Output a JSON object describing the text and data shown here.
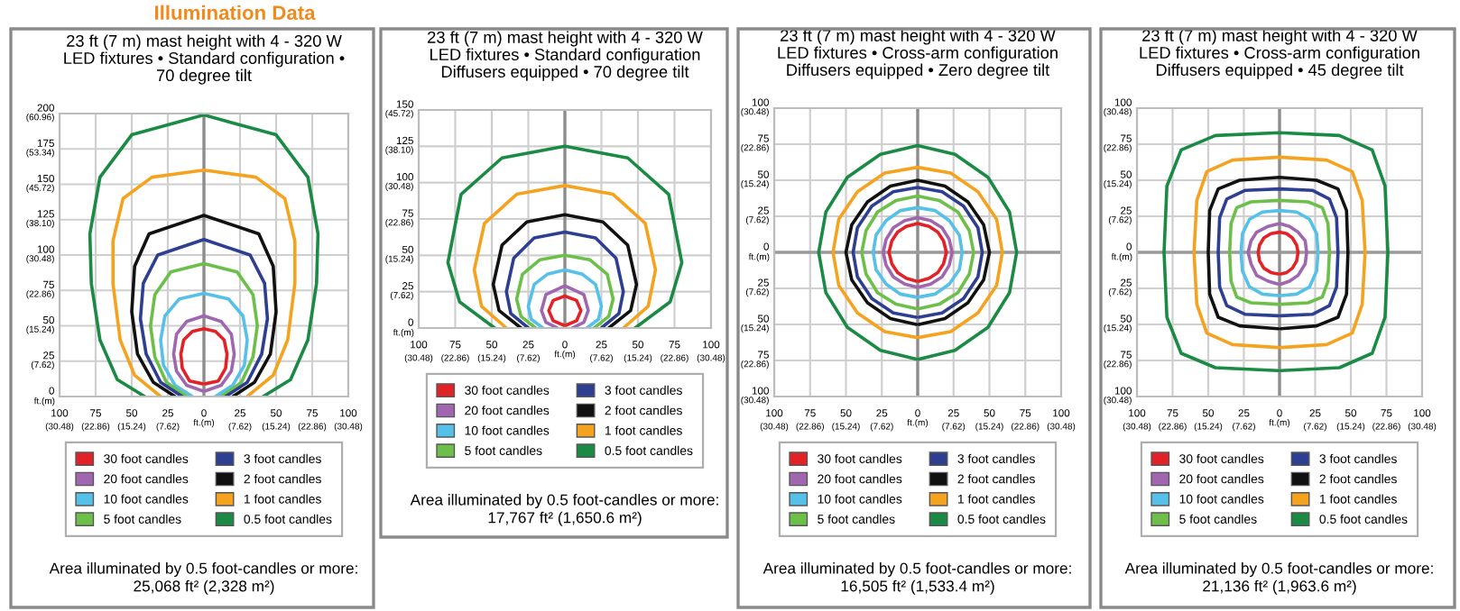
{
  "chart_data": [
    {
      "type": "line",
      "title": "23 ft (7 m) mast height with 4 - 320 W\nLED fixtures • Standard configuration •\n70 degree tilt",
      "annotations": [
        "Illumination Data",
        "Area illuminated by 0.5 foot-candles or more:\n25,068 ft² (2,328 m²)"
      ],
      "legend": "bottom",
      "grid": true,
      "marker": "none",
      "line_style": "solid",
      "xlabel": "ft.(m)",
      "ylabel": "ft.(m)",
      "xlim": [
        -100,
        100
      ],
      "ylim": [
        0,
        200
      ],
      "xticks": [
        {
          "value": -100,
          "label": "100"
        },
        {
          "value": -75,
          "label": "75"
        },
        {
          "value": -50,
          "label": "50"
        },
        {
          "value": -25,
          "label": "25"
        },
        0,
        25,
        50,
        75,
        100
      ],
      "x2lim": [
        -30.48,
        30.48
      ],
      "x2ticks": [
        {
          "value": -30.48,
          "label": "(30.48)"
        },
        {
          "value": -22.86,
          "label": "(22.86)"
        },
        {
          "value": -15.24,
          "label": "(15.24)"
        },
        {
          "value": -7.62,
          "label": "(7.62)"
        },
        {
          "value": 7.62,
          "label": "(7.62)"
        },
        {
          "value": 15.24,
          "label": "(15.24)"
        },
        {
          "value": 22.86,
          "label": "(22.86)"
        },
        {
          "value": 30.48,
          "label": "(30.48)"
        }
      ],
      "yticks": [
        0,
        25,
        50,
        75,
        100,
        125,
        150,
        175,
        200
      ],
      "y2lim": [
        0,
        60.96
      ],
      "y2ticks": [
        {
          "value": 7.62,
          "label": "(7.62)"
        },
        {
          "value": 15.24,
          "label": "(15.24)"
        },
        {
          "value": 22.86,
          "label": "(22.86)"
        },
        {
          "value": 30.48,
          "label": "(30.48)"
        },
        {
          "value": 38.1,
          "label": "(38.10)"
        },
        {
          "value": 45.72,
          "label": "(45.72)"
        },
        {
          "value": 53.34,
          "label": "(53.34)"
        },
        {
          "value": 60.96,
          "label": "(60.96)"
        }
      ],
      "ref_lines": [
        {
          "axis": "x",
          "value": 0,
          "color": "#8c8c8c"
        }
      ],
      "series": [
        {
          "name": "30 foot candles",
          "color": "#e32228",
          "x": [
            1,
            10,
            15,
            16,
            14,
            8,
            0,
            -8,
            -14,
            -16,
            -15,
            -10,
            -1
          ],
          "values": [
            9,
            11,
            20,
            30,
            40,
            46,
            48,
            46,
            40,
            30,
            20,
            11,
            9
          ]
        },
        {
          "name": "20 foot candles",
          "color": "#a066b0",
          "x": [
            1,
            12,
            19,
            21,
            19,
            12,
            0,
            -12,
            -19,
            -21,
            -19,
            -12,
            -1
          ],
          "values": [
            4,
            8,
            18,
            30,
            44,
            53,
            57,
            53,
            44,
            30,
            18,
            8,
            4
          ]
        },
        {
          "name": "10 foot candles",
          "color": "#55c1e9",
          "x": [
            8,
            20,
            28,
            30,
            27,
            17,
            0,
            -17,
            -27,
            -30,
            -28,
            -20,
            -8
          ],
          "values": [
            0,
            8,
            22,
            40,
            57,
            69,
            73,
            69,
            57,
            40,
            22,
            8,
            0
          ]
        },
        {
          "name": "5 foot candles",
          "color": "#6cc04a",
          "x": [
            12,
            26,
            34,
            37,
            34,
            23,
            0,
            -23,
            -34,
            -37,
            -34,
            -26,
            -12
          ],
          "values": [
            0,
            10,
            28,
            50,
            72,
            88,
            94,
            88,
            72,
            50,
            28,
            10,
            0
          ]
        },
        {
          "name": "3 foot candles",
          "color": "#2e3f92",
          "x": [
            15,
            30,
            40,
            44,
            42,
            32,
            0,
            -32,
            -42,
            -44,
            -40,
            -30,
            -15
          ],
          "values": [
            0,
            10,
            30,
            55,
            80,
            100,
            111,
            100,
            80,
            55,
            30,
            10,
            0
          ]
        },
        {
          "name": "2 foot candles",
          "color": "#111111",
          "x": [
            20,
            35,
            46,
            50,
            48,
            38,
            0,
            -38,
            -48,
            -50,
            -46,
            -35,
            -20
          ],
          "values": [
            0,
            10,
            30,
            60,
            92,
            115,
            128,
            115,
            92,
            60,
            30,
            10,
            0
          ]
        },
        {
          "name": "1 foot candles",
          "color": "#f5a31f",
          "x": [
            30,
            48,
            58,
            63,
            63,
            56,
            36,
            0,
            -36,
            -56,
            -63,
            -63,
            -58,
            -48,
            -30
          ],
          "values": [
            0,
            15,
            40,
            80,
            110,
            140,
            155,
            160,
            155,
            140,
            110,
            80,
            40,
            15,
            0
          ]
        },
        {
          "name": "0.5 foot candles",
          "color": "#1b8a44",
          "x": [
            41,
            60,
            72,
            78,
            79,
            72,
            50,
            0,
            -50,
            -72,
            -79,
            -78,
            -72,
            -60,
            -41
          ],
          "values": [
            0,
            12,
            40,
            80,
            115,
            155,
            185,
            199,
            185,
            155,
            115,
            80,
            40,
            12,
            0
          ]
        }
      ]
    },
    {
      "type": "line",
      "title": "23 ft (7 m) mast height with 4 - 320 W\nLED fixtures • Standard configuration\nDiffusers equipped • 70 degree tilt",
      "annotations": [
        "Area illuminated by 0.5 foot-candles or more:\n17,767 ft² (1,650.6 m²)"
      ],
      "legend": "bottom",
      "grid": true,
      "marker": "none",
      "line_style": "solid",
      "xlabel": "ft.(m)",
      "ylabel": "ft.(m)",
      "xlim": [
        -100,
        100
      ],
      "ylim": [
        0,
        150
      ],
      "xticks": [
        {
          "value": -100,
          "label": "100"
        },
        {
          "value": -75,
          "label": "75"
        },
        {
          "value": -50,
          "label": "50"
        },
        {
          "value": -25,
          "label": "25"
        },
        0,
        25,
        50,
        75,
        100
      ],
      "x2lim": [
        -30.48,
        30.48
      ],
      "x2ticks": [
        {
          "value": -30.48,
          "label": "(30.48)"
        },
        {
          "value": -22.86,
          "label": "(22.86)"
        },
        {
          "value": -15.24,
          "label": "(15.24)"
        },
        {
          "value": -7.62,
          "label": "(7.62)"
        },
        {
          "value": 7.62,
          "label": "(7.62)"
        },
        {
          "value": 15.24,
          "label": "(15.24)"
        },
        {
          "value": 22.86,
          "label": "(22.86)"
        },
        {
          "value": 30.48,
          "label": "(30.48)"
        }
      ],
      "yticks": [
        0,
        25,
        50,
        75,
        100,
        125,
        150
      ],
      "y2lim": [
        0,
        45.72
      ],
      "y2ticks": [
        {
          "value": 7.62,
          "label": "(7.62)"
        },
        {
          "value": 15.24,
          "label": "(15.24)"
        },
        {
          "value": 22.86,
          "label": "(22.86)"
        },
        {
          "value": 30.48,
          "label": "(30.48)"
        },
        {
          "value": 38.1,
          "label": "(38.10)"
        },
        {
          "value": 45.72,
          "label": "(45.72)"
        }
      ],
      "ref_lines": [
        {
          "axis": "x",
          "value": 0,
          "color": "#8c8c8c"
        }
      ],
      "series": [
        {
          "name": "30 foot candles",
          "color": "#e32228",
          "x": [
            1,
            8,
            11,
            8,
            0,
            -8,
            -11,
            -8,
            -1
          ],
          "values": [
            2,
            5,
            12,
            19,
            22,
            19,
            12,
            5,
            2
          ]
        },
        {
          "name": "20 foot candles",
          "color": "#a066b0",
          "x": [
            5,
            13,
            16,
            13,
            0,
            -13,
            -16,
            -13,
            -5
          ],
          "values": [
            0,
            4,
            12,
            23,
            29,
            23,
            12,
            4,
            0
          ]
        },
        {
          "name": "10 foot candles",
          "color": "#55c1e9",
          "x": [
            15,
            23,
            25,
            21,
            12,
            0,
            -12,
            -21,
            -25,
            -23,
            -15
          ],
          "values": [
            0,
            6,
            15,
            30,
            37,
            40,
            37,
            30,
            15,
            6,
            0
          ]
        },
        {
          "name": "5 foot candles",
          "color": "#6cc04a",
          "x": [
            20,
            30,
            33,
            29,
            17,
            0,
            -17,
            -29,
            -33,
            -30,
            -20
          ],
          "values": [
            0,
            8,
            20,
            37,
            47,
            50,
            47,
            37,
            20,
            8,
            0
          ]
        },
        {
          "name": "3 foot candles",
          "color": "#2e3f92",
          "x": [
            25,
            37,
            40,
            35,
            21,
            0,
            -21,
            -35,
            -40,
            -37,
            -25
          ],
          "values": [
            0,
            10,
            25,
            48,
            62,
            66,
            62,
            48,
            25,
            10,
            0
          ]
        },
        {
          "name": "2 foot candles",
          "color": "#111111",
          "x": [
            30,
            45,
            49,
            43,
            26,
            0,
            -26,
            -43,
            -49,
            -45,
            -30
          ],
          "values": [
            0,
            12,
            30,
            57,
            73,
            78,
            73,
            57,
            30,
            12,
            0
          ]
        },
        {
          "name": "1 foot candles",
          "color": "#f5a31f",
          "x": [
            40,
            57,
            62,
            55,
            33,
            0,
            -33,
            -55,
            -62,
            -57,
            -40
          ],
          "values": [
            0,
            15,
            40,
            72,
            92,
            98,
            92,
            72,
            40,
            15,
            0
          ]
        },
        {
          "name": "0.5 foot candles",
          "color": "#1b8a44",
          "x": [
            48,
            72,
            80,
            71,
            43,
            0,
            -43,
            -71,
            -80,
            -72,
            -48
          ],
          "values": [
            0,
            18,
            45,
            92,
            117,
            125,
            117,
            92,
            45,
            18,
            0
          ]
        }
      ]
    },
    {
      "type": "line",
      "title": "23 ft (7 m) mast height with 4 - 320 W\nLED fixtures • Cross-arm configuration\nDiffusers equipped • Zero degree tilt",
      "annotations": [
        "Area illuminated by 0.5 foot-candles or more:\n16,505 ft² (1,533.4 m²)"
      ],
      "legend": "bottom",
      "grid": true,
      "marker": "none",
      "line_style": "solid",
      "xlabel": "ft.(m)",
      "ylabel": "ft.(m)",
      "xlim": [
        -100,
        100
      ],
      "ylim": [
        -100,
        100
      ],
      "xticks": [
        {
          "value": -100,
          "label": "100"
        },
        {
          "value": -75,
          "label": "75"
        },
        {
          "value": -50,
          "label": "50"
        },
        {
          "value": -25,
          "label": "25"
        },
        0,
        25,
        50,
        75,
        100
      ],
      "x2lim": [
        -30.48,
        30.48
      ],
      "x2ticks": [
        {
          "value": -30.48,
          "label": "(30.48)"
        },
        {
          "value": -22.86,
          "label": "(22.86)"
        },
        {
          "value": -15.24,
          "label": "(15.24)"
        },
        {
          "value": -7.62,
          "label": "(7.62)"
        },
        {
          "value": 7.62,
          "label": "(7.62)"
        },
        {
          "value": 15.24,
          "label": "(15.24)"
        },
        {
          "value": 22.86,
          "label": "(22.86)"
        },
        {
          "value": 30.48,
          "label": "(30.48)"
        }
      ],
      "yticks": [
        {
          "value": -100,
          "label": "100"
        },
        {
          "value": -75,
          "label": "75"
        },
        {
          "value": -50,
          "label": "50"
        },
        {
          "value": -25,
          "label": "25"
        },
        0,
        25,
        50,
        75,
        100
      ],
      "y2lim": [
        -30.48,
        30.48
      ],
      "y2ticks": [
        {
          "value": -30.48,
          "label": "(30.48)"
        },
        {
          "value": -22.86,
          "label": "(22.86)"
        },
        {
          "value": -15.24,
          "label": "(15.24)"
        },
        {
          "value": -7.62,
          "label": "(7.62)"
        },
        {
          "value": 7.62,
          "label": "(7.62)"
        },
        {
          "value": 15.24,
          "label": "(15.24)"
        },
        {
          "value": 22.86,
          "label": "(22.86)"
        },
        {
          "value": 30.48,
          "label": "(30.48)"
        }
      ],
      "ref_lines": [
        {
          "axis": "x",
          "value": 0,
          "color": "#8c8c8c"
        },
        {
          "axis": "y",
          "value": 0,
          "color": "#9a9a9a"
        }
      ],
      "series": [
        {
          "name": "30 foot candles",
          "color": "#e32228",
          "x": [
            1,
            8,
            14,
            18,
            20,
            18,
            14,
            8,
            0,
            -8,
            -14,
            -18,
            -20,
            -18,
            -14,
            -8,
            -1
          ],
          "values": [
            -20,
            -18,
            -14,
            -8,
            0,
            8,
            14,
            18,
            20,
            18,
            14,
            8,
            0,
            -8,
            -14,
            -18,
            -20
          ]
        },
        {
          "name": "20 foot candles",
          "color": "#a066b0",
          "x": [
            1,
            9,
            17,
            22,
            24,
            22,
            17,
            9,
            0,
            -9,
            -17,
            -22,
            -24,
            -22,
            -17,
            -9,
            -1
          ],
          "values": [
            -24,
            -22,
            -17,
            -9,
            0,
            9,
            17,
            22,
            24,
            22,
            17,
            9,
            0,
            -9,
            -17,
            -22,
            -24
          ]
        },
        {
          "name": "10 foot candles",
          "color": "#55c1e9",
          "x": [
            1,
            12,
            22,
            29,
            31,
            29,
            22,
            12,
            0,
            -12,
            -22,
            -29,
            -31,
            -29,
            -22,
            -12,
            -1
          ],
          "values": [
            -31,
            -29,
            -22,
            -12,
            0,
            12,
            22,
            29,
            31,
            29,
            22,
            12,
            0,
            -12,
            -22,
            -29,
            -31
          ]
        },
        {
          "name": "5 foot candles",
          "color": "#6cc04a",
          "x": [
            1,
            15,
            28,
            36,
            39,
            36,
            28,
            15,
            0,
            -15,
            -28,
            -36,
            -39,
            -36,
            -28,
            -15,
            -1
          ],
          "values": [
            -39,
            -36,
            -28,
            -15,
            0,
            15,
            28,
            36,
            39,
            36,
            28,
            15,
            0,
            -15,
            -28,
            -36,
            -39
          ]
        },
        {
          "name": "3 foot candles",
          "color": "#2e3f92",
          "x": [
            1,
            17,
            32,
            42,
            45,
            42,
            32,
            17,
            0,
            -17,
            -32,
            -42,
            -45,
            -42,
            -32,
            -17,
            -1
          ],
          "values": [
            -45,
            -42,
            -32,
            -17,
            0,
            17,
            32,
            42,
            45,
            42,
            32,
            17,
            0,
            -17,
            -32,
            -42,
            -45
          ]
        },
        {
          "name": "2 foot candles",
          "color": "#111111",
          "x": [
            1,
            19,
            35,
            46,
            50,
            46,
            35,
            19,
            0,
            -19,
            -35,
            -46,
            -50,
            -46,
            -35,
            -19,
            -1
          ],
          "values": [
            -50,
            -46,
            -35,
            -19,
            0,
            19,
            35,
            46,
            50,
            46,
            35,
            19,
            0,
            -19,
            -35,
            -46,
            -50
          ]
        },
        {
          "name": "1 foot candles",
          "color": "#f5a31f",
          "x": [
            1,
            23,
            42,
            55,
            59,
            55,
            42,
            23,
            0,
            -23,
            -42,
            -55,
            -59,
            -55,
            -42,
            -23,
            -1
          ],
          "values": [
            -59,
            -55,
            -42,
            -23,
            0,
            23,
            42,
            55,
            59,
            55,
            42,
            23,
            0,
            -23,
            -42,
            -55,
            -59
          ]
        },
        {
          "name": "0.5 foot candles",
          "color": "#1b8a44",
          "x": [
            1,
            26,
            49,
            64,
            69,
            64,
            49,
            26,
            0,
            -26,
            -49,
            -64,
            -69,
            -64,
            -49,
            -26,
            -1
          ],
          "values": [
            -74,
            -68,
            -52,
            -28,
            0,
            28,
            52,
            68,
            74,
            68,
            52,
            28,
            0,
            -28,
            -52,
            -68,
            -74
          ]
        }
      ]
    },
    {
      "type": "line",
      "title": "23 ft (7 m) mast height with 4 - 320 W\nLED fixtures • Cross-arm configuration\nDiffusers equipped • 45 degree tilt",
      "annotations": [
        "Area illuminated by 0.5 foot-candles or more:\n21,136 ft² (1,963.6 m²)"
      ],
      "legend": "bottom",
      "grid": true,
      "marker": "none",
      "line_style": "solid",
      "xlabel": "ft.(m)",
      "ylabel": "ft.(m)",
      "xlim": [
        -100,
        100
      ],
      "ylim": [
        -100,
        100
      ],
      "xticks": [
        {
          "value": -100,
          "label": "100"
        },
        {
          "value": -75,
          "label": "75"
        },
        {
          "value": -50,
          "label": "50"
        },
        {
          "value": -25,
          "label": "25"
        },
        0,
        25,
        50,
        75,
        100
      ],
      "x2lim": [
        -30.48,
        30.48
      ],
      "x2ticks": [
        {
          "value": -30.48,
          "label": "(30.48)"
        },
        {
          "value": -22.86,
          "label": "(22.86)"
        },
        {
          "value": -15.24,
          "label": "(15.24)"
        },
        {
          "value": -7.62,
          "label": "(7.62)"
        },
        {
          "value": 7.62,
          "label": "(7.62)"
        },
        {
          "value": 15.24,
          "label": "(15.24)"
        },
        {
          "value": 22.86,
          "label": "(22.86)"
        },
        {
          "value": 30.48,
          "label": "(30.48)"
        }
      ],
      "yticks": [
        {
          "value": -100,
          "label": "100"
        },
        {
          "value": -75,
          "label": "75"
        },
        {
          "value": -50,
          "label": "50"
        },
        {
          "value": -25,
          "label": "25"
        },
        0,
        25,
        50,
        75,
        100
      ],
      "y2lim": [
        -30.48,
        30.48
      ],
      "y2ticks": [
        {
          "value": -30.48,
          "label": "(30.48)"
        },
        {
          "value": -22.86,
          "label": "(22.86)"
        },
        {
          "value": -15.24,
          "label": "(15.24)"
        },
        {
          "value": -7.62,
          "label": "(7.62)"
        },
        {
          "value": 7.62,
          "label": "(7.62)"
        },
        {
          "value": 15.24,
          "label": "(15.24)"
        },
        {
          "value": 22.86,
          "label": "(22.86)"
        },
        {
          "value": 30.48,
          "label": "(30.48)"
        }
      ],
      "ref_lines": [
        {
          "axis": "x",
          "value": 0,
          "color": "#8c8c8c"
        },
        {
          "axis": "y",
          "value": 0,
          "color": "#9a9a9a"
        }
      ],
      "series": [
        {
          "name": "30 foot candles",
          "color": "#e32228",
          "x": [
            1,
            5,
            9,
            12,
            13,
            12,
            9,
            5,
            0,
            -6,
            -11,
            -14,
            -15,
            -14,
            -11,
            -6,
            -1
          ],
          "values": [
            -15,
            -14,
            -11,
            -6,
            0,
            5,
            10,
            13,
            14,
            13,
            10,
            5,
            0,
            -6,
            -11,
            -14,
            -15
          ]
        },
        {
          "name": "20 foot candles",
          "color": "#a066b0",
          "x": [
            1,
            7,
            13,
            18,
            19,
            18,
            13,
            7,
            0,
            -8,
            -16,
            -20,
            -22,
            -20,
            -16,
            -8,
            -1
          ],
          "values": [
            -22,
            -20,
            -16,
            -8,
            0,
            8,
            14,
            18,
            20,
            18,
            14,
            8,
            0,
            -8,
            -16,
            -20,
            -22
          ]
        },
        {
          "name": "10 foot candles",
          "color": "#55c1e9",
          "x": [
            1,
            12,
            21,
            26,
            27,
            26,
            21,
            12,
            0,
            -12,
            -21,
            -26,
            -27,
            -26,
            -21,
            -12,
            -1
          ],
          "values": [
            -30,
            -29,
            -24,
            -13,
            0,
            13,
            23,
            28,
            29,
            28,
            23,
            13,
            0,
            -13,
            -24,
            -29,
            -30
          ]
        },
        {
          "name": "5 foot candles",
          "color": "#6cc04a",
          "x": [
            1,
            20,
            30,
            34,
            35,
            34,
            30,
            20,
            0,
            -20,
            -30,
            -34,
            -35,
            -34,
            -30,
            -20,
            -1
          ],
          "values": [
            -36,
            -35,
            -31,
            -20,
            0,
            20,
            31,
            35,
            36,
            35,
            31,
            20,
            0,
            -20,
            -31,
            -35,
            -36
          ]
        },
        {
          "name": "3 foot candles",
          "color": "#2e3f92",
          "x": [
            1,
            23,
            35,
            40,
            41,
            40,
            35,
            23,
            0,
            -24,
            -37,
            -42,
            -43,
            -42,
            -37,
            -24,
            -1
          ],
          "values": [
            -44,
            -43,
            -37,
            -24,
            0,
            24,
            37,
            43,
            44,
            43,
            37,
            24,
            0,
            -24,
            -37,
            -43,
            -44
          ]
        },
        {
          "name": "2 foot candles",
          "color": "#111111",
          "x": [
            1,
            26,
            41,
            47,
            48,
            47,
            41,
            26,
            0,
            -28,
            -43,
            -49,
            -50,
            -49,
            -43,
            -28,
            -1
          ],
          "values": [
            -53,
            -51,
            -45,
            -29,
            0,
            29,
            44,
            50,
            52,
            50,
            44,
            29,
            0,
            -29,
            -45,
            -51,
            -53
          ]
        },
        {
          "name": "1 foot candles",
          "color": "#f5a31f",
          "x": [
            1,
            33,
            51,
            58,
            60,
            58,
            51,
            33,
            0,
            -33,
            -51,
            -58,
            -60,
            -58,
            -51,
            -33,
            -1
          ],
          "values": [
            -66,
            -64,
            -56,
            -36,
            0,
            36,
            56,
            64,
            66,
            64,
            56,
            36,
            0,
            -36,
            -56,
            -64,
            -66
          ]
        },
        {
          "name": "0.5 foot candles",
          "color": "#1b8a44",
          "x": [
            1,
            42,
            65,
            74,
            76,
            74,
            65,
            42,
            0,
            -45,
            -69,
            -79,
            -81,
            -79,
            -69,
            -45,
            -1
          ],
          "values": [
            -82,
            -80,
            -70,
            -45,
            0,
            46,
            71,
            81,
            83,
            81,
            71,
            46,
            0,
            -45,
            -70,
            -80,
            -82
          ]
        }
      ]
    }
  ]
}
